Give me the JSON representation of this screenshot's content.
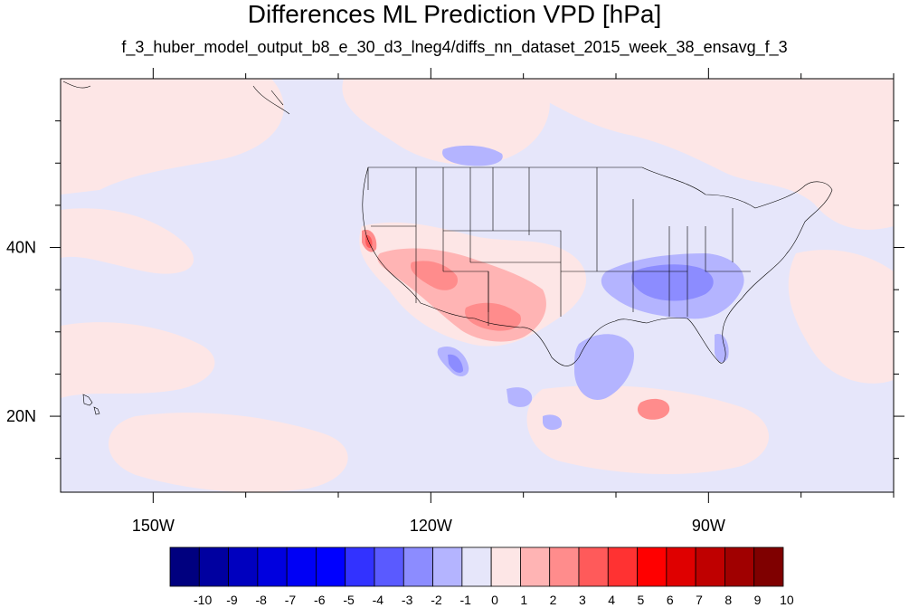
{
  "title": "Differences ML Prediction VPD [hPa]",
  "subtitle": "f_3_huber_model_output_b8_e_30_d3_lneg4/diffs_nn_dataset_2015_week_38_ensavg_f_3",
  "map": {
    "lon_range": [
      -160,
      -70
    ],
    "lat_range": [
      11,
      60
    ],
    "background_color": "#e6e6fa",
    "lon_labels": [
      {
        "lon": -150,
        "text": "150W"
      },
      {
        "lon": -120,
        "text": "120W"
      },
      {
        "lon": -90,
        "text": "90W"
      }
    ],
    "lat_labels": [
      {
        "lat": 40,
        "text": "40N"
      },
      {
        "lat": 20,
        "text": "20N"
      }
    ]
  },
  "colorbar": {
    "labels": [
      "-10",
      "-9",
      "-8",
      "-7",
      "-6",
      "-5",
      "-4",
      "-3",
      "-2",
      "-1",
      "0",
      "1",
      "2",
      "3",
      "4",
      "5",
      "6",
      "7",
      "8",
      "9",
      "10"
    ],
    "colors": [
      "#00007f",
      "#0000a0",
      "#0000bf",
      "#0000df",
      "#0000f5",
      "#0000ff",
      "#3232ff",
      "#5a5aff",
      "#8c8cff",
      "#b4b4ff",
      "#e6e6fa",
      "#fde6e6",
      "#ffb4b4",
      "#ff8c8c",
      "#ff5a5a",
      "#ff3232",
      "#ff0000",
      "#df0000",
      "#bf0000",
      "#a00000",
      "#7f0000"
    ]
  }
}
